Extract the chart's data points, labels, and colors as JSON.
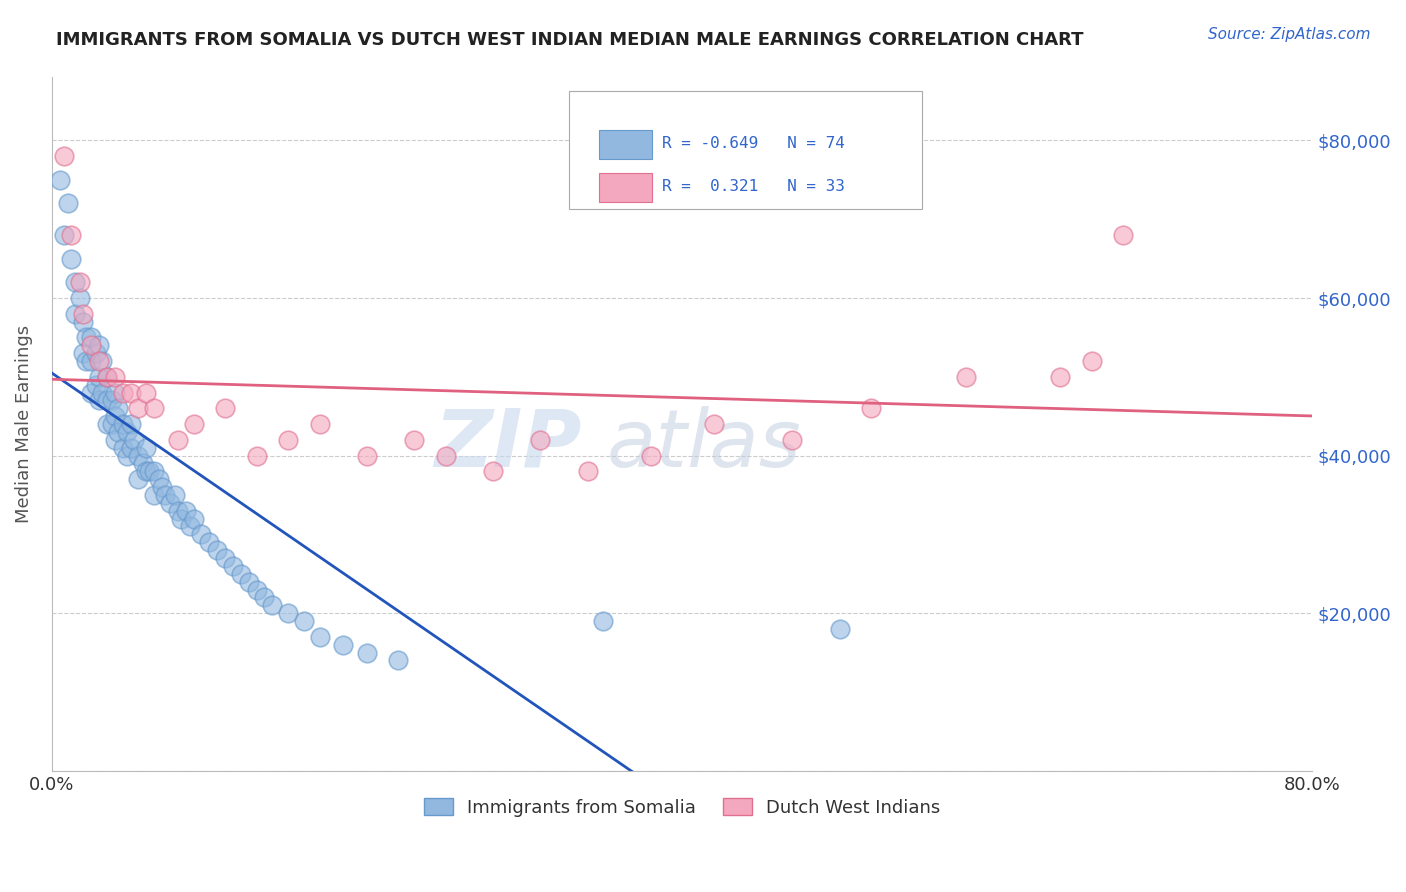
{
  "title": "IMMIGRANTS FROM SOMALIA VS DUTCH WEST INDIAN MEDIAN MALE EARNINGS CORRELATION CHART",
  "source": "Source: ZipAtlas.com",
  "ylabel": "Median Male Earnings",
  "xlim": [
    0.0,
    0.8
  ],
  "ylim": [
    0,
    88000
  ],
  "yticks": [
    0,
    20000,
    40000,
    60000,
    80000
  ],
  "xticks": [
    0.0,
    0.8
  ],
  "xtick_labels": [
    "0.0%",
    "80.0%"
  ],
  "right_tick_labels": [
    "",
    "$20,000",
    "$40,000",
    "$60,000",
    "$80,000"
  ],
  "somalia_color": "#92b8e0",
  "somalia_edge": "#6699cc",
  "dwi_color": "#f4a8bf",
  "dwi_edge": "#e0708f",
  "trend_somalia_color": "#2255bb",
  "trend_dwi_color": "#e06080",
  "right_tick_color": "#3366cc",
  "grid_color": "#cccccc",
  "watermark_zip": "ZIP",
  "watermark_atlas": "atlas",
  "somalia_x": [
    0.005,
    0.008,
    0.01,
    0.012,
    0.015,
    0.015,
    0.018,
    0.02,
    0.02,
    0.022,
    0.022,
    0.025,
    0.025,
    0.025,
    0.028,
    0.028,
    0.03,
    0.03,
    0.03,
    0.032,
    0.032,
    0.035,
    0.035,
    0.035,
    0.038,
    0.038,
    0.04,
    0.04,
    0.04,
    0.042,
    0.042,
    0.045,
    0.045,
    0.048,
    0.048,
    0.05,
    0.05,
    0.052,
    0.055,
    0.055,
    0.058,
    0.06,
    0.06,
    0.062,
    0.065,
    0.065,
    0.068,
    0.07,
    0.072,
    0.075,
    0.078,
    0.08,
    0.082,
    0.085,
    0.088,
    0.09,
    0.095,
    0.1,
    0.105,
    0.11,
    0.115,
    0.12,
    0.125,
    0.13,
    0.135,
    0.14,
    0.15,
    0.16,
    0.17,
    0.185,
    0.2,
    0.22,
    0.35,
    0.5
  ],
  "somalia_y": [
    75000,
    68000,
    72000,
    65000,
    62000,
    58000,
    60000,
    57000,
    53000,
    55000,
    52000,
    55000,
    52000,
    48000,
    53000,
    49000,
    50000,
    47000,
    54000,
    52000,
    48000,
    50000,
    47000,
    44000,
    47000,
    44000,
    48000,
    45000,
    42000,
    46000,
    43000,
    44000,
    41000,
    43000,
    40000,
    44000,
    41000,
    42000,
    40000,
    37000,
    39000,
    41000,
    38000,
    38000,
    38000,
    35000,
    37000,
    36000,
    35000,
    34000,
    35000,
    33000,
    32000,
    33000,
    31000,
    32000,
    30000,
    29000,
    28000,
    27000,
    26000,
    25000,
    24000,
    23000,
    22000,
    21000,
    20000,
    19000,
    17000,
    16000,
    15000,
    14000,
    19000,
    18000
  ],
  "dwi_x": [
    0.008,
    0.012,
    0.018,
    0.02,
    0.025,
    0.03,
    0.035,
    0.04,
    0.045,
    0.05,
    0.055,
    0.06,
    0.065,
    0.08,
    0.09,
    0.11,
    0.13,
    0.15,
    0.17,
    0.2,
    0.23,
    0.25,
    0.28,
    0.31,
    0.34,
    0.38,
    0.42,
    0.47,
    0.52,
    0.58,
    0.64,
    0.66,
    0.68
  ],
  "dwi_y": [
    78000,
    68000,
    62000,
    58000,
    54000,
    52000,
    50000,
    50000,
    48000,
    48000,
    46000,
    48000,
    46000,
    42000,
    44000,
    46000,
    40000,
    42000,
    44000,
    40000,
    42000,
    40000,
    38000,
    42000,
    38000,
    40000,
    44000,
    42000,
    46000,
    50000,
    50000,
    52000,
    68000
  ],
  "trend_somalia_x_start": 0.0,
  "trend_somalia_x_end": 0.46,
  "trend_dwi_x_start": 0.0,
  "trend_dwi_x_end": 0.8
}
